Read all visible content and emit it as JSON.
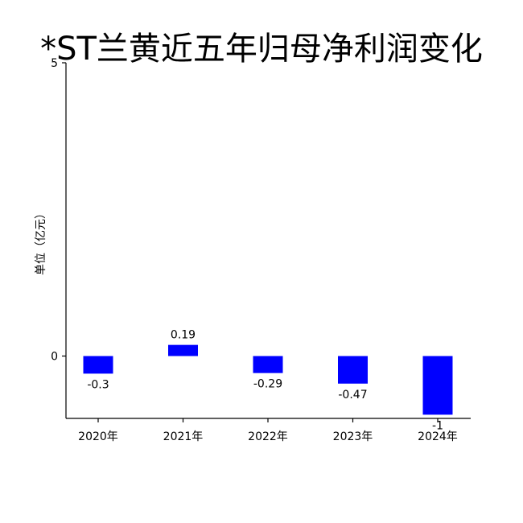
{
  "chart_data": {
    "type": "bar",
    "title": "*ST兰黄近五年归母净利润变化",
    "ylabel": "单位（亿元）",
    "xlabel": "",
    "categories": [
      "2020年",
      "2021年",
      "2022年",
      "2023年",
      "2024年"
    ],
    "values": [
      -0.3,
      0.19,
      -0.29,
      -0.47,
      -1
    ],
    "data_labels": [
      "-0.3",
      "0.19",
      "-0.29",
      "-0.47",
      "-1"
    ],
    "yticks": [
      0,
      5
    ],
    "ytick_labels": [
      "0",
      "5"
    ],
    "ylim": [
      -1.05,
      5
    ],
    "bar_color": "#0000ff",
    "grid": false,
    "legend": "none"
  }
}
